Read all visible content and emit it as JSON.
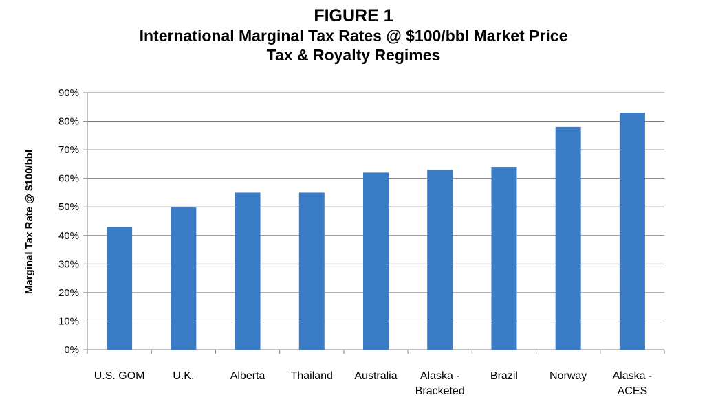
{
  "chart_data": {
    "type": "bar",
    "title": "FIGURE 1",
    "subtitle_lines": [
      "International Marginal Tax Rates @ $100/bbl Market Price",
      "Tax & Royalty Regimes"
    ],
    "ylabel": "Marginal Tax Rate @ $100/bbl",
    "xlabel": "",
    "categories": [
      [
        "U.S. GOM"
      ],
      [
        "U.K."
      ],
      [
        "Alberta"
      ],
      [
        "Thailand"
      ],
      [
        "Australia"
      ],
      [
        "Alaska -",
        "Bracketed"
      ],
      [
        "Brazil"
      ],
      [
        "Norway"
      ],
      [
        "Alaska -",
        "ACES"
      ]
    ],
    "values": [
      43,
      50,
      55,
      55,
      62,
      63,
      64,
      78,
      83
    ],
    "ylim": [
      0,
      90
    ],
    "yticks": [
      0,
      10,
      20,
      30,
      40,
      50,
      60,
      70,
      80,
      90
    ],
    "ytick_labels": [
      "0%",
      "10%",
      "20%",
      "30%",
      "40%",
      "50%",
      "60%",
      "70%",
      "80%",
      "90%"
    ],
    "grid": true,
    "legend": "none",
    "bar_color": "#3a7dc6",
    "grid_color": "#7f7f7f"
  }
}
